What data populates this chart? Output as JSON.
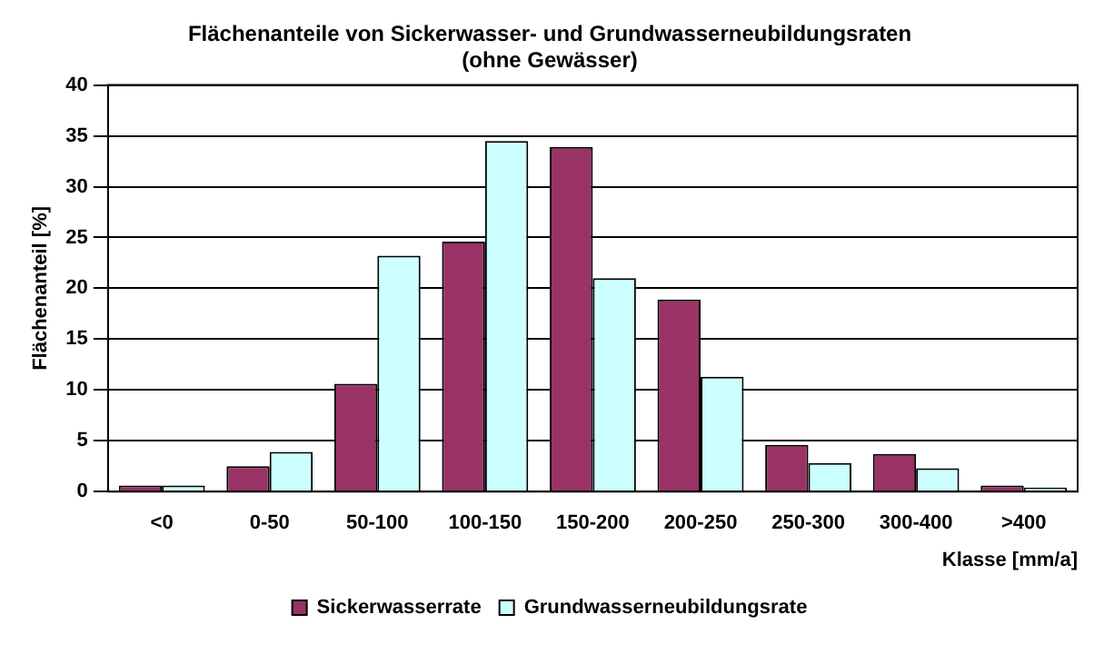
{
  "chart_data": {
    "type": "bar",
    "title": [
      "Flächenanteile von Sickerwasser- und Grundwasserneubildungsraten",
      "(ohne Gewässer)"
    ],
    "xlabel": "Klasse [mm/a]",
    "ylabel": "Flächenanteil [%]",
    "categories": [
      "<0",
      "0-50",
      "50-100",
      "100-150",
      "150-200",
      "200-250",
      "250-300",
      "300-400",
      ">400"
    ],
    "series": [
      {
        "name": "Sickerwasserrate",
        "color": "#993366",
        "values": [
          0.6,
          2.5,
          10.6,
          24.6,
          33.9,
          18.9,
          4.6,
          3.7,
          0.6
        ]
      },
      {
        "name": "Grundwasserneubildungsrate",
        "color": "#ccffff",
        "values": [
          0.6,
          3.9,
          23.2,
          34.5,
          21.0,
          11.3,
          2.8,
          2.3,
          0.4
        ]
      }
    ],
    "ylim": [
      0,
      40
    ],
    "yticks": [
      0,
      5,
      10,
      15,
      20,
      25,
      30,
      35,
      40
    ],
    "grid": "y",
    "legend": "bottom"
  }
}
